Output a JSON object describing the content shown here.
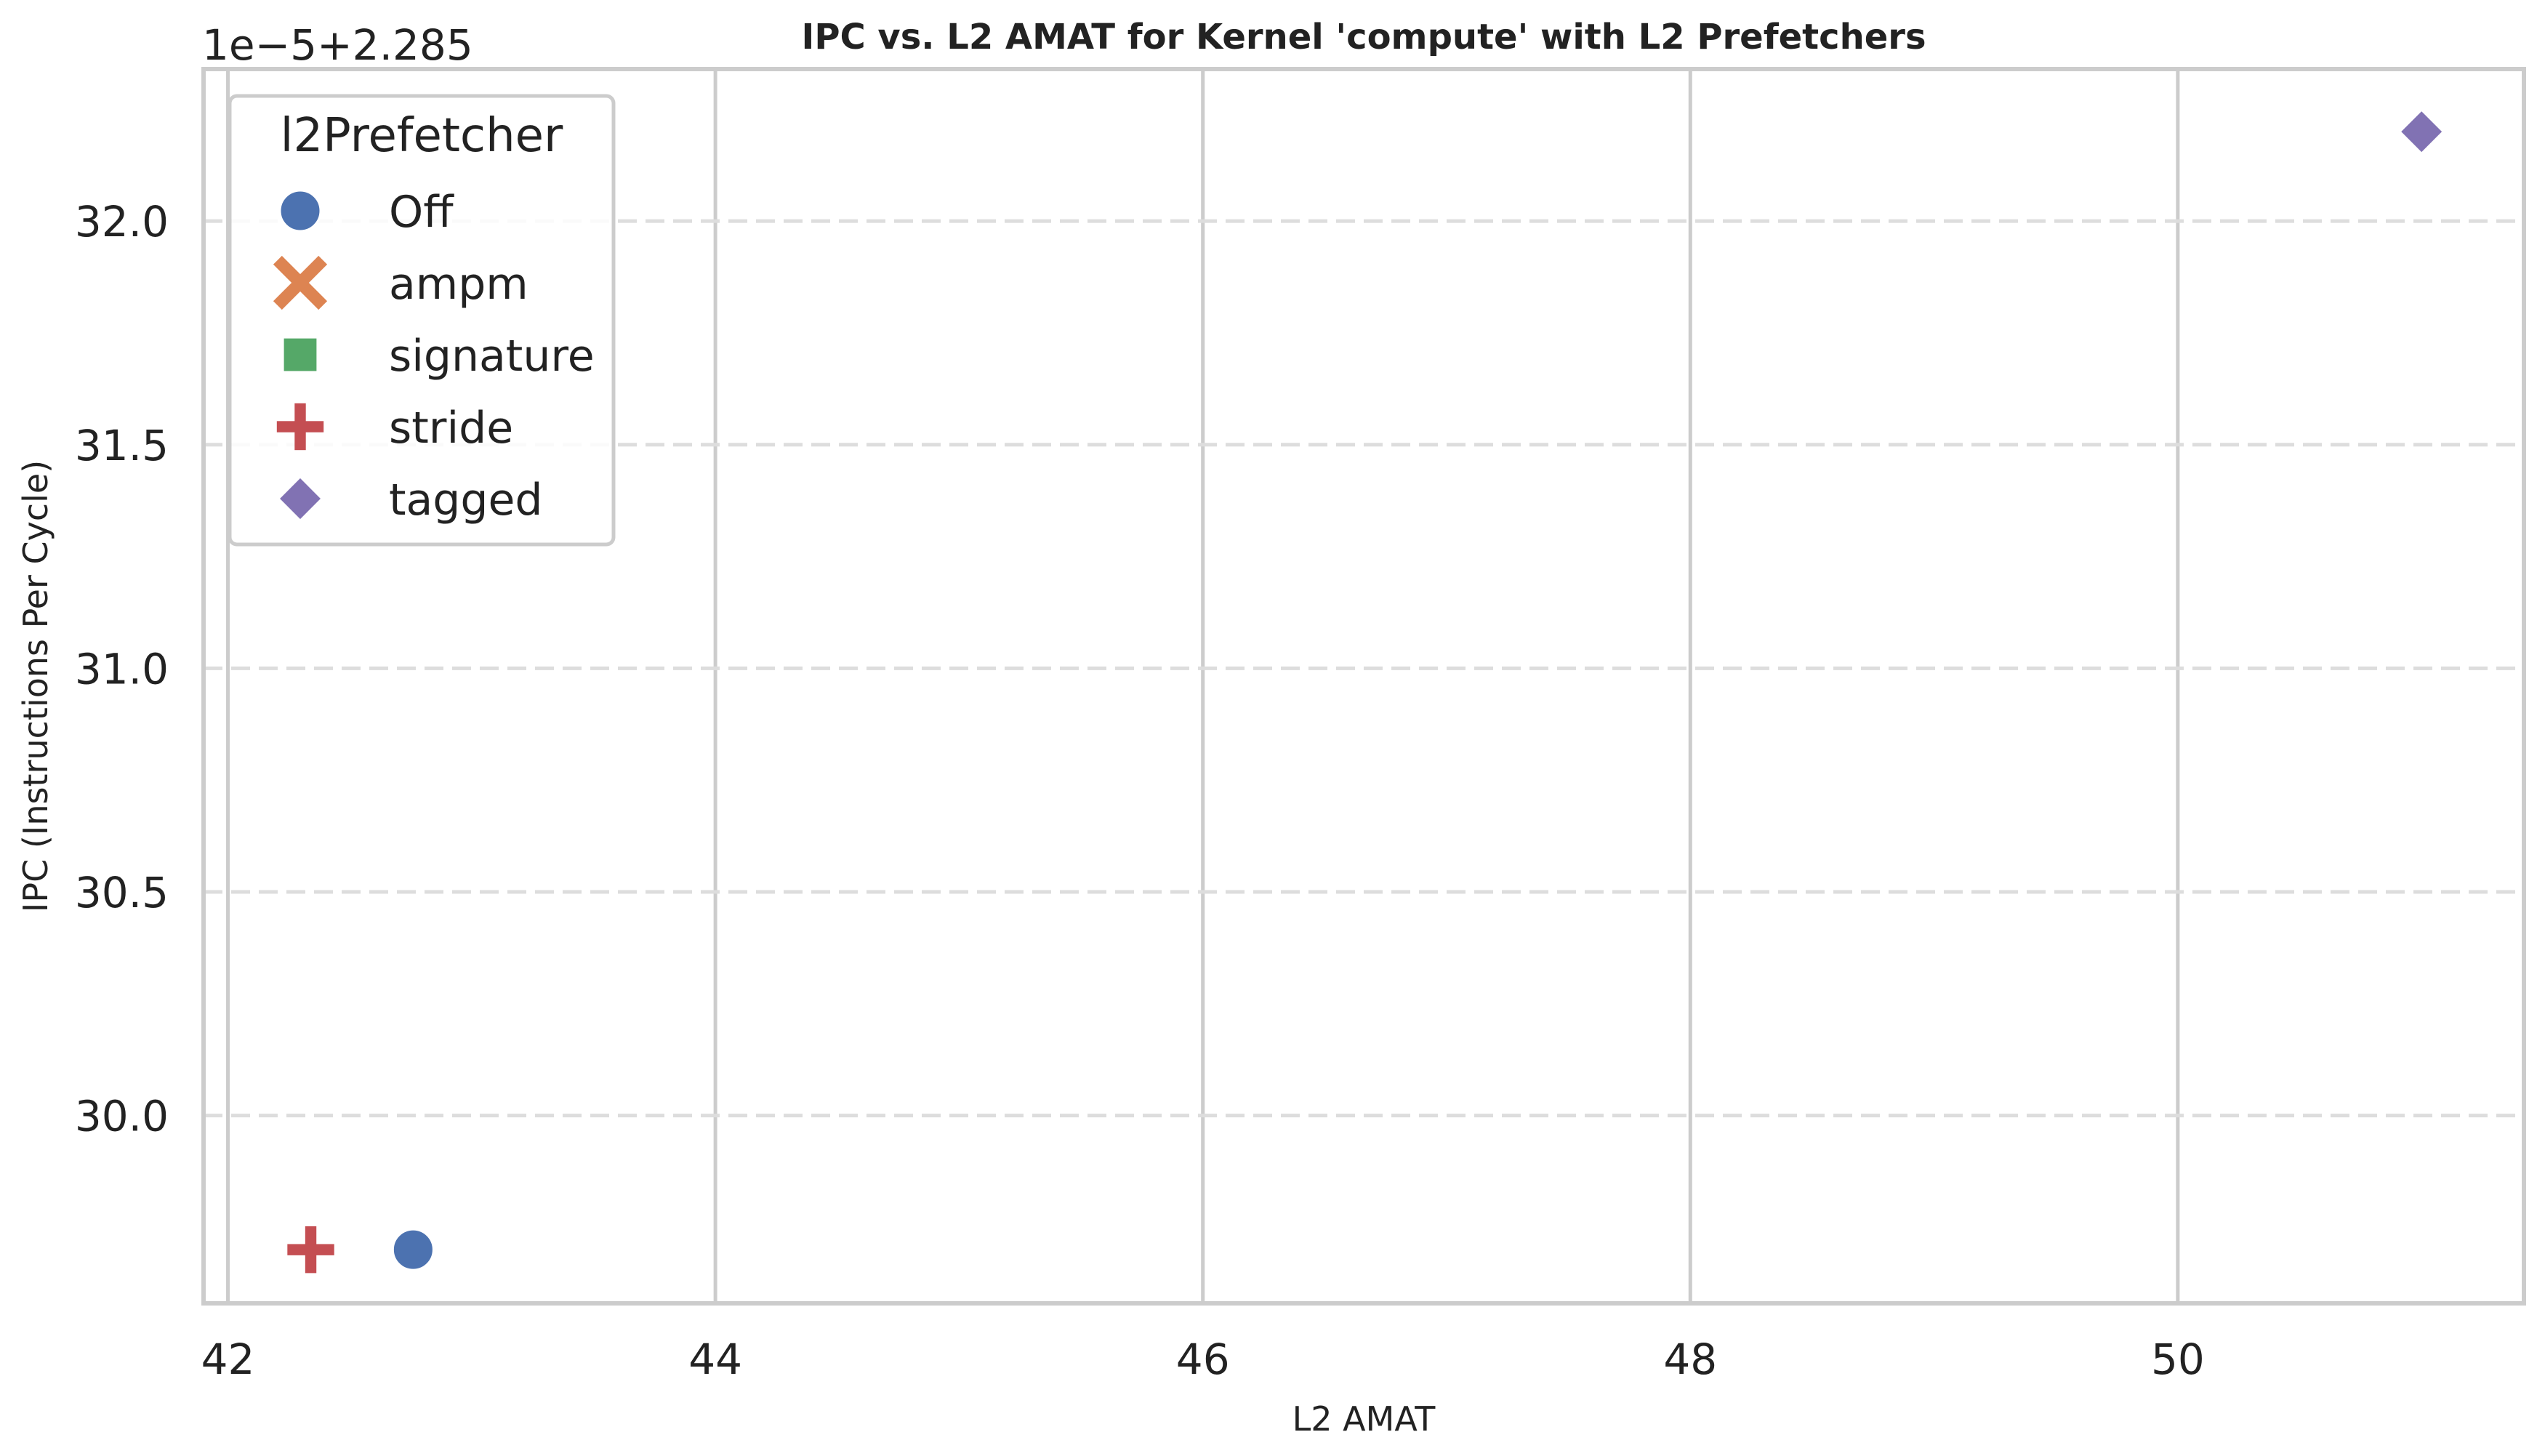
{
  "chart_data": {
    "type": "scatter",
    "title": "IPC vs. L2 AMAT for Kernel 'compute' with L2 Prefetchers",
    "xlabel": "L2 AMAT",
    "ylabel": "IPC (Instructions Per Cycle)",
    "y_offset_label": "1e−5+2.285",
    "xlim": [
      41.9,
      51.42
    ],
    "ylim": [
      29.58,
      32.34
    ],
    "x_ticks": [
      42,
      44,
      46,
      48,
      50
    ],
    "x_tick_labels": [
      "42",
      "44",
      "46",
      "48",
      "50"
    ],
    "y_ticks": [
      30.0,
      30.5,
      31.0,
      31.5,
      32.0
    ],
    "y_tick_labels": [
      "30.0",
      "30.5",
      "31.0",
      "31.5",
      "32.0"
    ],
    "grid": true,
    "legend": {
      "title": "l2Prefetcher",
      "location": "upper-left"
    },
    "series": [
      {
        "name": "Off",
        "marker": "circle",
        "color": "#4c72b0",
        "points": [
          {
            "x": 42.76,
            "y": 29.7
          }
        ]
      },
      {
        "name": "ampm",
        "marker": "x",
        "color": "#dd8452",
        "points": []
      },
      {
        "name": "signature",
        "marker": "square",
        "color": "#55a868",
        "points": []
      },
      {
        "name": "stride",
        "marker": "plus",
        "color": "#c44e52",
        "points": [
          {
            "x": 42.34,
            "y": 29.7
          }
        ]
      },
      {
        "name": "tagged",
        "marker": "diamond",
        "color": "#8172b3",
        "points": [
          {
            "x": 51.0,
            "y": 32.2
          }
        ]
      }
    ]
  }
}
